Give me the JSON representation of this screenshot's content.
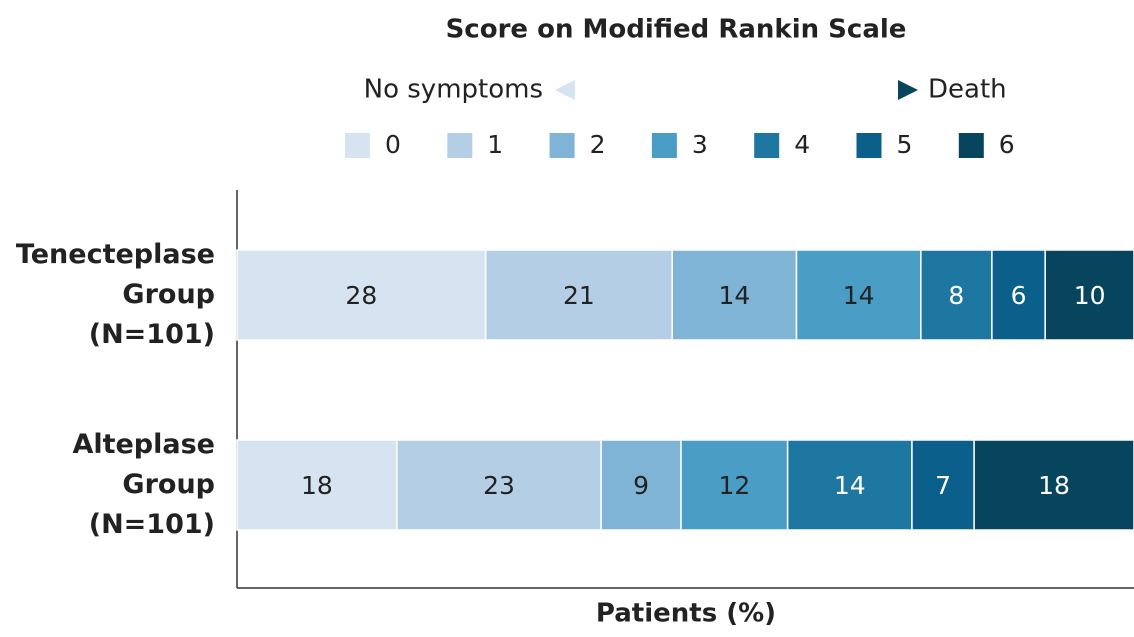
{
  "chart_data": {
    "type": "stacked-bar-horizontal",
    "title": "Score on Modified Rankin Scale",
    "annotations": [
      "No symptoms",
      "Death"
    ],
    "x_label": "Patients (%)",
    "categories": [
      "Tenecteplase Group (N=101)",
      "Alteplase Group (N=101)"
    ],
    "xlim": [
      0,
      101
    ],
    "series": [
      {
        "name": "0",
        "color": "#d6e4f1",
        "values": [
          28,
          18
        ]
      },
      {
        "name": "1",
        "color": "#b4cfe5",
        "values": [
          21,
          23
        ]
      },
      {
        "name": "2",
        "color": "#80b4d6",
        "values": [
          14,
          9
        ]
      },
      {
        "name": "3",
        "color": "#4a9dc5",
        "values": [
          14,
          12
        ]
      },
      {
        "name": "4",
        "color": "#1d77a1",
        "values": [
          8,
          14
        ]
      },
      {
        "name": "5",
        "color": "#0b5f8b",
        "values": [
          6,
          7
        ]
      },
      {
        "name": "6",
        "color": "#07455f",
        "values": [
          10,
          18
        ]
      }
    ]
  }
}
